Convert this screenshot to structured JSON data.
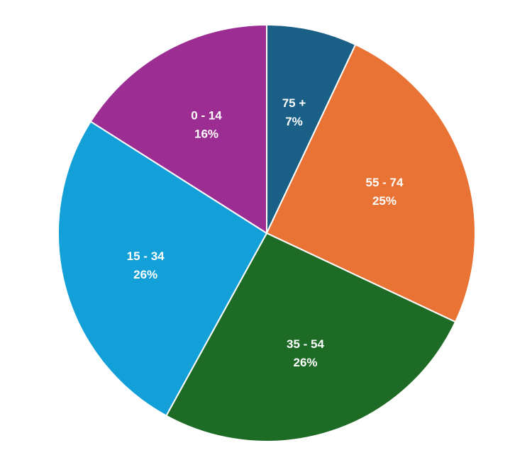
{
  "chart_data": {
    "type": "pie",
    "title": "",
    "categories": [
      "75 +",
      "55 - 74",
      "35 - 54",
      "15 - 34",
      "0 - 14"
    ],
    "values": [
      7,
      25,
      26,
      26,
      16
    ],
    "percent_labels": [
      "7%",
      "25%",
      "26%",
      "26%",
      "16%"
    ],
    "colors": [
      "#1a5f86",
      "#e87334",
      "#1e6b26",
      "#13a0d8",
      "#9c2d92"
    ],
    "start_angle": "12 o'clock",
    "direction": "clockwise",
    "legend": "none",
    "label_placement": "inside"
  }
}
